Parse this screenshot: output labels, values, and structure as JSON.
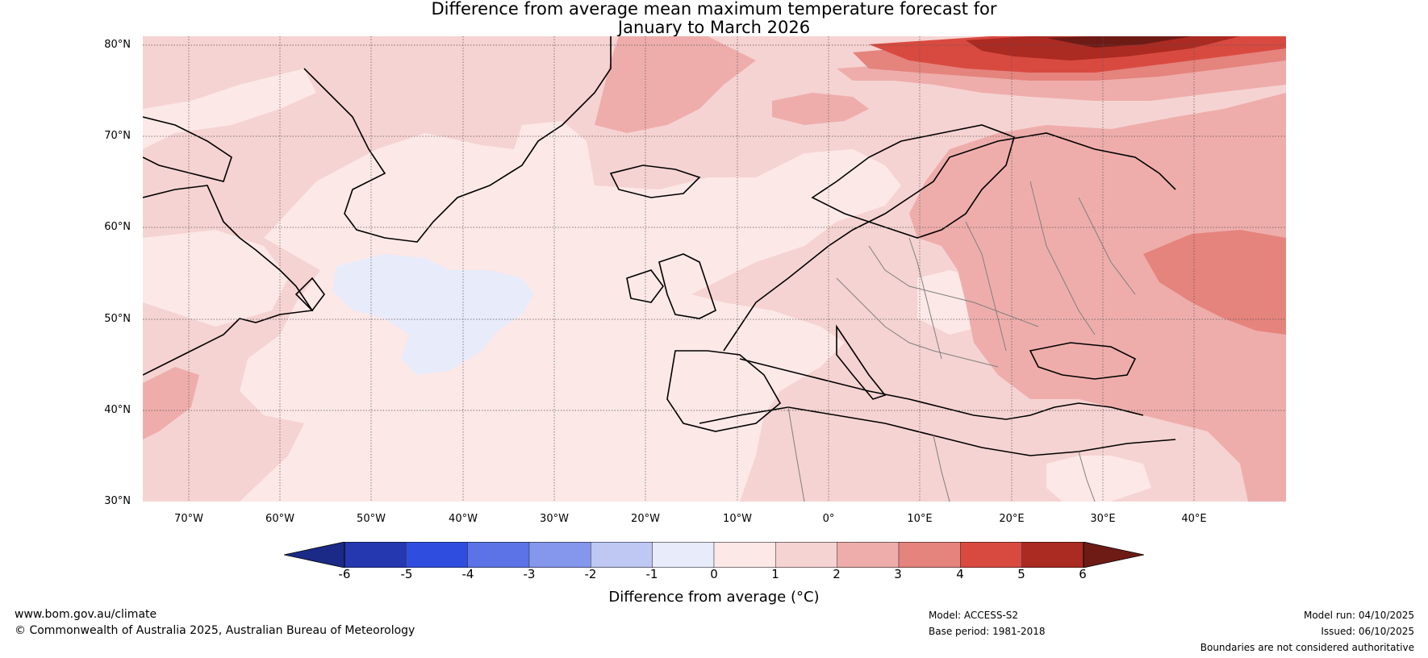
{
  "title": {
    "line1": "Difference from average mean maximum temperature forecast for",
    "line2": "January to March 2026"
  },
  "map": {
    "lat_labels": [
      "80°N",
      "70°N",
      "60°N",
      "50°N",
      "40°N",
      "30°N"
    ],
    "lon_labels": [
      "70°W",
      "60°W",
      "50°W",
      "40°W",
      "30°W",
      "20°W",
      "10°W",
      "0°",
      "10°E",
      "20°E",
      "30°E",
      "40°E"
    ],
    "lat_range": [
      30,
      81
    ],
    "lon_range": [
      -75,
      50
    ]
  },
  "colorbar": {
    "ticks": [
      "-6",
      "-5",
      "-4",
      "-3",
      "-2",
      "-1",
      "0",
      "1",
      "2",
      "3",
      "4",
      "5",
      "6"
    ],
    "colors": [
      "#1b2a86",
      "#2538b0",
      "#2f4ee0",
      "#5b73e6",
      "#8497ec",
      "#bec8f3",
      "#e8ebfa",
      "#fce8e7",
      "#f5d3d2",
      "#eeadab",
      "#e5837d",
      "#d84a40",
      "#ab2a22",
      "#6e1b16"
    ],
    "label": "Difference from average (°C)"
  },
  "footer": {
    "website": "www.bom.gov.au/climate",
    "copyright": "© Commonwealth of Australia 2025, Australian Bureau of Meteorology",
    "model": "Model: ACCESS-S2",
    "base_period": "Base period: 1981-2018",
    "model_run": "Model run: 04/10/2025",
    "issued": "Issued: 06/10/2025",
    "disclaimer": "Boundaries are not considered authoritative"
  }
}
